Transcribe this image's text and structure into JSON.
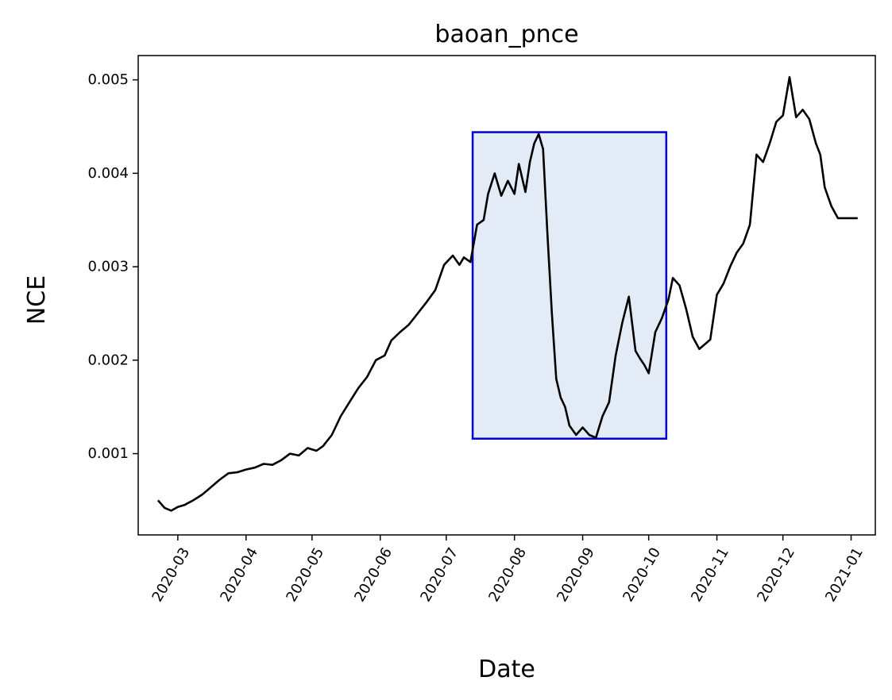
{
  "chart_data": {
    "type": "line",
    "title": "baoan_pnce",
    "xlabel": "Date",
    "ylabel": "NCE",
    "xlim": [
      "2020-02-12",
      "2021-01-12"
    ],
    "ylim": [
      0.00013,
      0.00526
    ],
    "grid": false,
    "legend": "none",
    "x_ticks": [
      "2020-03",
      "2020-04",
      "2020-05",
      "2020-06",
      "2020-07",
      "2020-08",
      "2020-09",
      "2020-10",
      "2020-11",
      "2020-12",
      "2021-01"
    ],
    "y_ticks": [
      "0.001",
      "0.002",
      "0.003",
      "0.004",
      "0.005"
    ],
    "series": [
      {
        "color": "#000000",
        "x": [
          "2020-02-21",
          "2020-02-24",
          "2020-02-27",
          "2020-03-01",
          "2020-03-04",
          "2020-03-08",
          "2020-03-12",
          "2020-03-16",
          "2020-03-20",
          "2020-03-24",
          "2020-03-28",
          "2020-04-01",
          "2020-04-05",
          "2020-04-09",
          "2020-04-13",
          "2020-04-17",
          "2020-04-21",
          "2020-04-25",
          "2020-04-29",
          "2020-05-03",
          "2020-05-06",
          "2020-05-10",
          "2020-05-14",
          "2020-05-18",
          "2020-05-22",
          "2020-05-26",
          "2020-05-30",
          "2020-06-03",
          "2020-06-06",
          "2020-06-10",
          "2020-06-14",
          "2020-06-18",
          "2020-06-22",
          "2020-06-26",
          "2020-06-30",
          "2020-07-04",
          "2020-07-07",
          "2020-07-09",
          "2020-07-12",
          "2020-07-15",
          "2020-07-18",
          "2020-07-20",
          "2020-07-23",
          "2020-07-26",
          "2020-07-29",
          "2020-08-01",
          "2020-08-03",
          "2020-08-06",
          "2020-08-08",
          "2020-08-10",
          "2020-08-12",
          "2020-08-14",
          "2020-08-16",
          "2020-08-18",
          "2020-08-20",
          "2020-08-22",
          "2020-08-24",
          "2020-08-26",
          "2020-08-29",
          "2020-09-01",
          "2020-09-04",
          "2020-09-07",
          "2020-09-10",
          "2020-09-13",
          "2020-09-16",
          "2020-09-19",
          "2020-09-22",
          "2020-09-25",
          "2020-09-27",
          "2020-09-29",
          "2020-10-01",
          "2020-10-04",
          "2020-10-07",
          "2020-10-10",
          "2020-10-12",
          "2020-10-15",
          "2020-10-18",
          "2020-10-21",
          "2020-10-24",
          "2020-10-27",
          "2020-10-29",
          "2020-11-01",
          "2020-11-04",
          "2020-11-07",
          "2020-11-10",
          "2020-11-13",
          "2020-11-16",
          "2020-11-19",
          "2020-11-22",
          "2020-11-25",
          "2020-11-28",
          "2020-12-01",
          "2020-12-04",
          "2020-12-07",
          "2020-12-10",
          "2020-12-13",
          "2020-12-16",
          "2020-12-18",
          "2020-12-20",
          "2020-12-23",
          "2020-12-26",
          "2020-12-29",
          "2021-01-01",
          "2021-01-04"
        ],
        "y": [
          0.0005,
          0.00042,
          0.00039,
          0.00043,
          0.00045,
          0.0005,
          0.00056,
          0.00064,
          0.00072,
          0.00079,
          0.0008,
          0.00083,
          0.00085,
          0.00089,
          0.00088,
          0.00093,
          0.001,
          0.00098,
          0.00106,
          0.00103,
          0.00108,
          0.0012,
          0.0014,
          0.00155,
          0.0017,
          0.00182,
          0.002,
          0.00205,
          0.00221,
          0.0023,
          0.00238,
          0.0025,
          0.00262,
          0.00275,
          0.00302,
          0.00312,
          0.00302,
          0.0031,
          0.00305,
          0.00345,
          0.0035,
          0.00378,
          0.004,
          0.00376,
          0.00392,
          0.00378,
          0.0041,
          0.0038,
          0.00412,
          0.00432,
          0.00442,
          0.00426,
          0.00335,
          0.0025,
          0.0018,
          0.0016,
          0.0015,
          0.0013,
          0.0012,
          0.00128,
          0.0012,
          0.00117,
          0.0014,
          0.00155,
          0.00205,
          0.0024,
          0.00268,
          0.0021,
          0.00202,
          0.00195,
          0.00186,
          0.0023,
          0.00245,
          0.00265,
          0.00288,
          0.0028,
          0.00255,
          0.00225,
          0.00212,
          0.00218,
          0.00222,
          0.0027,
          0.00282,
          0.003,
          0.00315,
          0.00325,
          0.00345,
          0.0042,
          0.00412,
          0.00432,
          0.00455,
          0.00462,
          0.00503,
          0.0046,
          0.00468,
          0.00458,
          0.00432,
          0.0042,
          0.00385,
          0.00365,
          0.00352,
          0.00352,
          0.00352,
          0.00352
        ]
      }
    ],
    "annotations": [
      {
        "type": "highlight-rect",
        "x_start": "2020-07-13",
        "x_end": "2020-10-09",
        "y_min": 0.00116,
        "y_max": 0.00444,
        "fill": "#e3ebf6",
        "stroke": "#0000cc"
      }
    ]
  }
}
